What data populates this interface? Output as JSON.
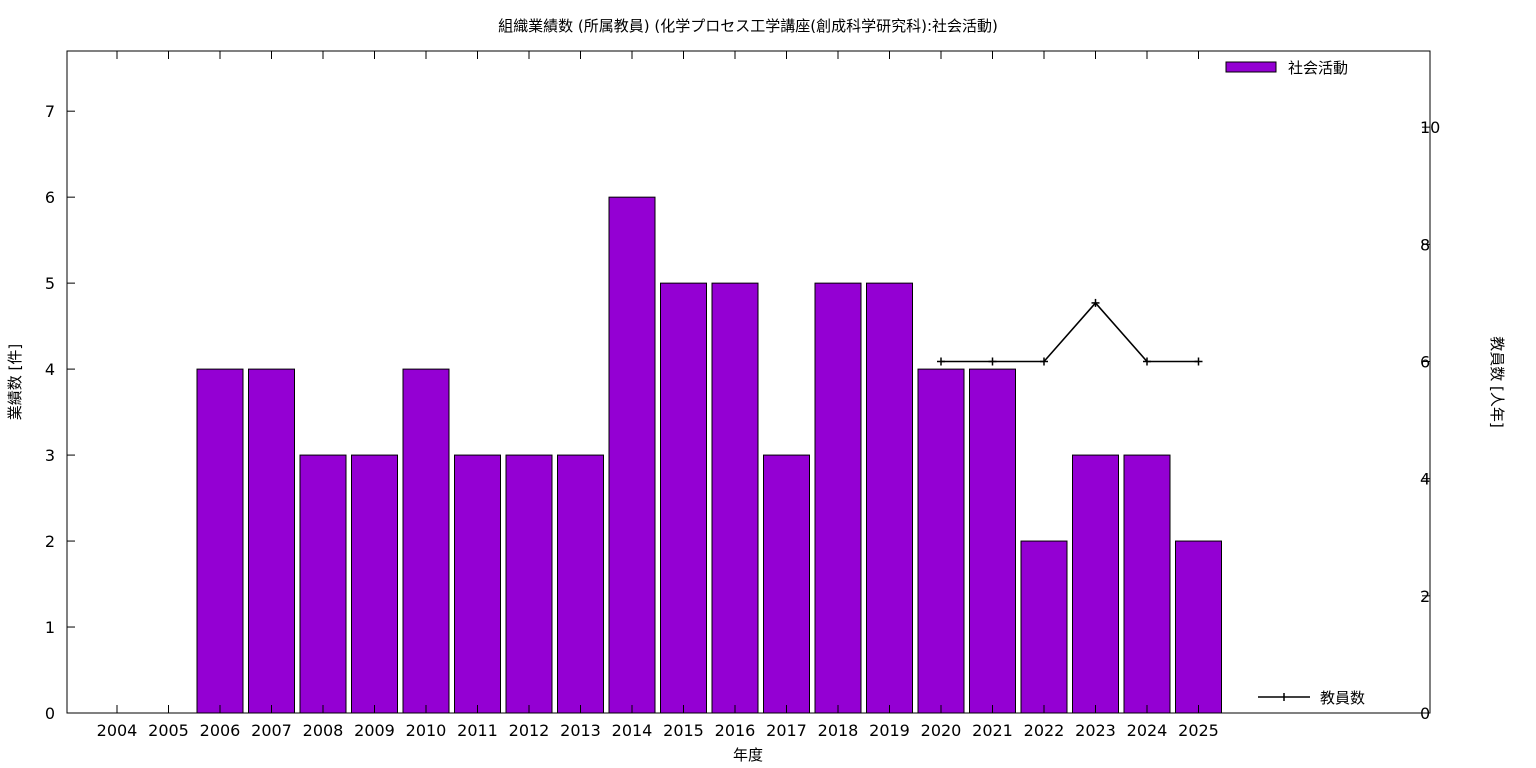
{
  "chart_data": {
    "type": "bar",
    "title": "組織業績数 (所属教員) (化学プロセス工学講座(創成科学研究科):社会活動)",
    "xlabel": "年度",
    "ylabel": "業績数 [件]",
    "y2label": "教員数 [人年]",
    "categories": [
      "2004",
      "2005",
      "2006",
      "2007",
      "2008",
      "2009",
      "2010",
      "2011",
      "2012",
      "2013",
      "2014",
      "2015",
      "2016",
      "2017",
      "2018",
      "2019",
      "2020",
      "2021",
      "2022",
      "2023",
      "2024",
      "2025"
    ],
    "ylim": [
      0,
      7.7
    ],
    "y2lim": [
      0,
      11.3
    ],
    "yticks": [
      0,
      1,
      2,
      3,
      4,
      5,
      6,
      7
    ],
    "y2ticks": [
      0,
      2,
      4,
      6,
      8,
      10
    ],
    "legend_position": "top-right",
    "grid": false,
    "series": [
      {
        "name": "社会活動",
        "kind": "bar",
        "axis": "left",
        "color": "#9400d3",
        "values": [
          null,
          null,
          4,
          4,
          3,
          3,
          4,
          3,
          3,
          3,
          6,
          5,
          5,
          3,
          5,
          5,
          4,
          4,
          2,
          3,
          3,
          2
        ]
      },
      {
        "name": "教員数",
        "kind": "line",
        "axis": "right",
        "color": "#000000",
        "values": [
          null,
          null,
          null,
          null,
          null,
          null,
          null,
          null,
          null,
          null,
          null,
          null,
          null,
          null,
          null,
          null,
          6,
          6,
          6,
          7,
          6,
          6
        ]
      }
    ]
  }
}
